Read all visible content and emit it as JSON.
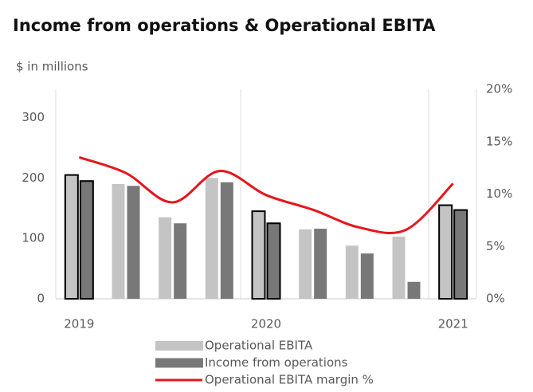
{
  "chart_data": {
    "type": "bar_line",
    "title": "Income from operations & Operational EBITA",
    "y_axis_label": "$ in millions",
    "categories": [
      "2019",
      null,
      null,
      null,
      "2020",
      null,
      null,
      null,
      "2021"
    ],
    "series": [
      {
        "name": "Operational EBITA",
        "color": "#c4c4c4",
        "values": [
          205,
          190,
          135,
          200,
          145,
          115,
          88,
          103,
          155
        ]
      },
      {
        "name": "Income from operations",
        "color": "#787878",
        "values": [
          195,
          187,
          125,
          193,
          125,
          116,
          75,
          28,
          147
        ]
      },
      {
        "name": "Operational EBITA margin %",
        "color": "#e8141b",
        "type": "line",
        "axis": "y2",
        "values": [
          13.5,
          12,
          9.2,
          12.2,
          9.9,
          8.5,
          6.8,
          6.6,
          11
        ]
      }
    ],
    "outlined": [
      0,
      4,
      8
    ],
    "ylim": [
      0,
      347
    ],
    "yticks": [
      0,
      100,
      200,
      300
    ],
    "y2lim": [
      0,
      20
    ],
    "y2ticks": [
      {
        "value": 0,
        "label": "0%"
      },
      {
        "value": 5,
        "label": "5%"
      },
      {
        "value": 10,
        "label": "10%"
      },
      {
        "value": 15,
        "label": "15%"
      },
      {
        "value": 20,
        "label": "20%"
      }
    ]
  }
}
